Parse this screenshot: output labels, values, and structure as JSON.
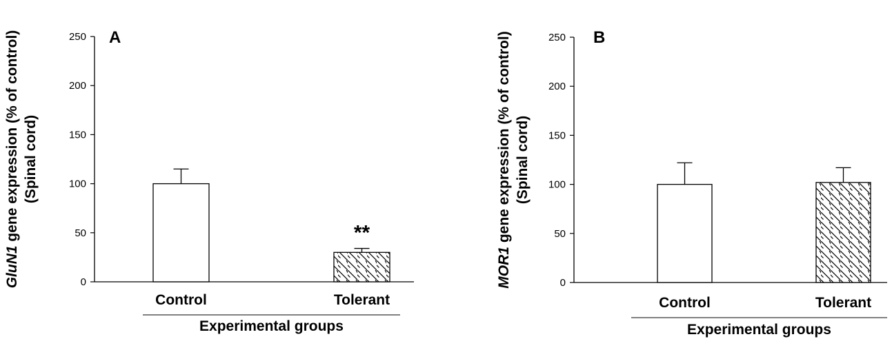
{
  "chart_data": [
    {
      "type": "bar",
      "panel_label": "A",
      "categories": [
        "Control",
        "Tolerant"
      ],
      "values": [
        100,
        30
      ],
      "error": [
        15,
        4
      ],
      "patterns": [
        "none",
        "diagonal-hatch"
      ],
      "annotations": [
        "",
        "**"
      ],
      "ylabel_gene": "GluN1",
      "ylabel_rest": " gene expression (% of control)",
      "ylabel_line2": "(Spinal cord)",
      "xlabel": "Experimental groups",
      "ylim": [
        0,
        250
      ],
      "yticks": [
        "0",
        "50",
        "100",
        "150",
        "200",
        "250"
      ],
      "grid": false,
      "legend": "none"
    },
    {
      "type": "bar",
      "panel_label": "B",
      "categories": [
        "Control",
        "Tolerant"
      ],
      "values": [
        100,
        102
      ],
      "error": [
        22,
        15
      ],
      "patterns": [
        "none",
        "diagonal-hatch"
      ],
      "annotations": [
        "",
        ""
      ],
      "ylabel_gene": "MOR1",
      "ylabel_rest": " gene expression (% of control)",
      "ylabel_line2": "(Spinal cord)",
      "xlabel": "Experimental groups",
      "ylim": [
        0,
        250
      ],
      "yticks": [
        "0",
        "50",
        "100",
        "150",
        "200",
        "250"
      ],
      "grid": false,
      "legend": "none"
    }
  ]
}
